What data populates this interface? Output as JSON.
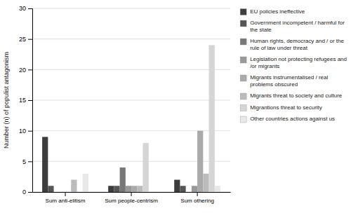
{
  "chart_data": {
    "type": "bar",
    "categories": [
      "Sum anti-elitism",
      "Sum people-centrism",
      "Sum othering"
    ],
    "series": [
      {
        "name": "EU policies ineffective",
        "color": "#3d3d3d",
        "values": [
          9,
          1,
          2
        ]
      },
      {
        "name": "Government incompetent / harmful for\n the state",
        "color": "#555555",
        "values": [
          1,
          1,
          1
        ]
      },
      {
        "name": "Human rights, democracy and / or the\n rule of law under threat",
        "color": "#777777",
        "values": [
          0,
          4,
          0
        ]
      },
      {
        "name": "Legislation not protecting refugees and\n /or migrants",
        "color": "#999999",
        "values": [
          0,
          1,
          1
        ]
      },
      {
        "name": "Migrants instrumentalised / real\n problems obscured",
        "color": "#aaaaaa",
        "values": [
          0,
          1,
          10
        ]
      },
      {
        "name": "Migrants threat to society and culture",
        "color": "#bbbbbb",
        "values": [
          2,
          1,
          3
        ]
      },
      {
        "name": "Migrantions threat to security",
        "color": "#d5d5d5",
        "values": [
          0,
          8,
          24
        ]
      },
      {
        "name": "Other countries actions against us",
        "color": "#e8e8e8",
        "values": [
          3,
          0,
          1
        ]
      }
    ],
    "y_label": "Number (n) of populist antagonism",
    "ylim": [
      0,
      30
    ],
    "yticks": [
      0,
      5,
      10,
      15,
      20,
      25,
      30
    ],
    "grid": true,
    "legend": "right"
  }
}
